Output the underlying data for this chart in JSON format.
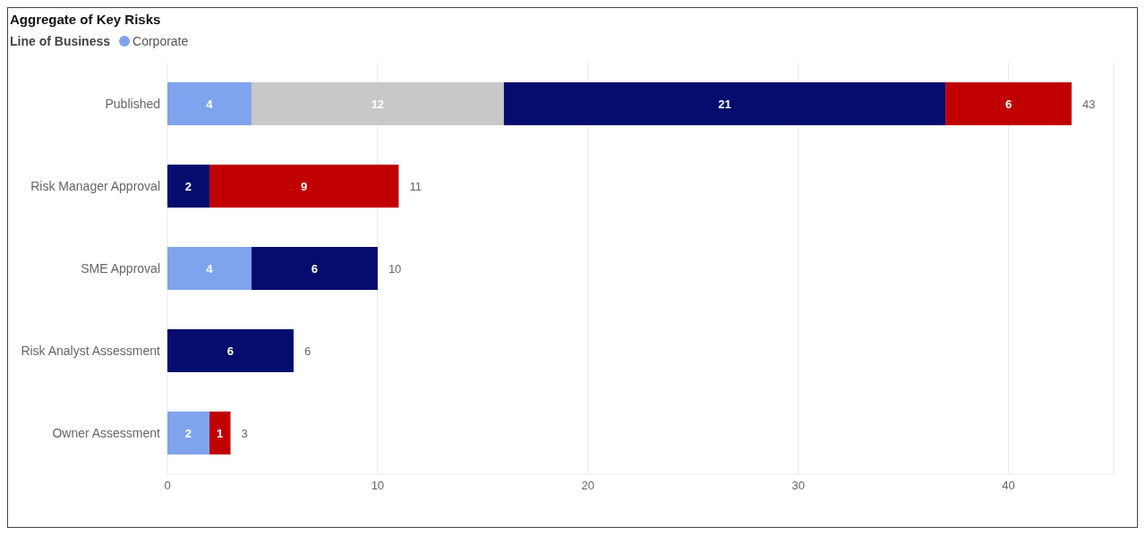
{
  "chart_data": {
    "type": "bar",
    "orientation": "horizontal",
    "stacked": true,
    "title": "Aggregate of Key Risks",
    "legend_title": "Line of Business",
    "legend": "top left",
    "grid": "x",
    "data_labels": true,
    "categories": [
      "Published",
      "Risk Manager Approval",
      "SME Approval",
      "Risk Analyst Assessment",
      "Owner Assessment"
    ],
    "series": [
      {
        "name": "Corporate",
        "color": "#7fa3ec",
        "values": [
          4,
          null,
          4,
          null,
          2
        ]
      },
      {
        "color": "#c8c8c8",
        "values": [
          12,
          null,
          null,
          null,
          null
        ]
      },
      {
        "color": "#040c6e",
        "values": [
          21,
          2,
          6,
          6,
          null
        ]
      },
      {
        "color": "#c00000",
        "values": [
          6,
          9,
          null,
          null,
          1
        ]
      }
    ],
    "totals": [
      "43",
      "11",
      "10",
      "6",
      "3"
    ],
    "xlim": [
      0,
      45
    ],
    "xticks": [
      0,
      10,
      20,
      30,
      40
    ]
  }
}
